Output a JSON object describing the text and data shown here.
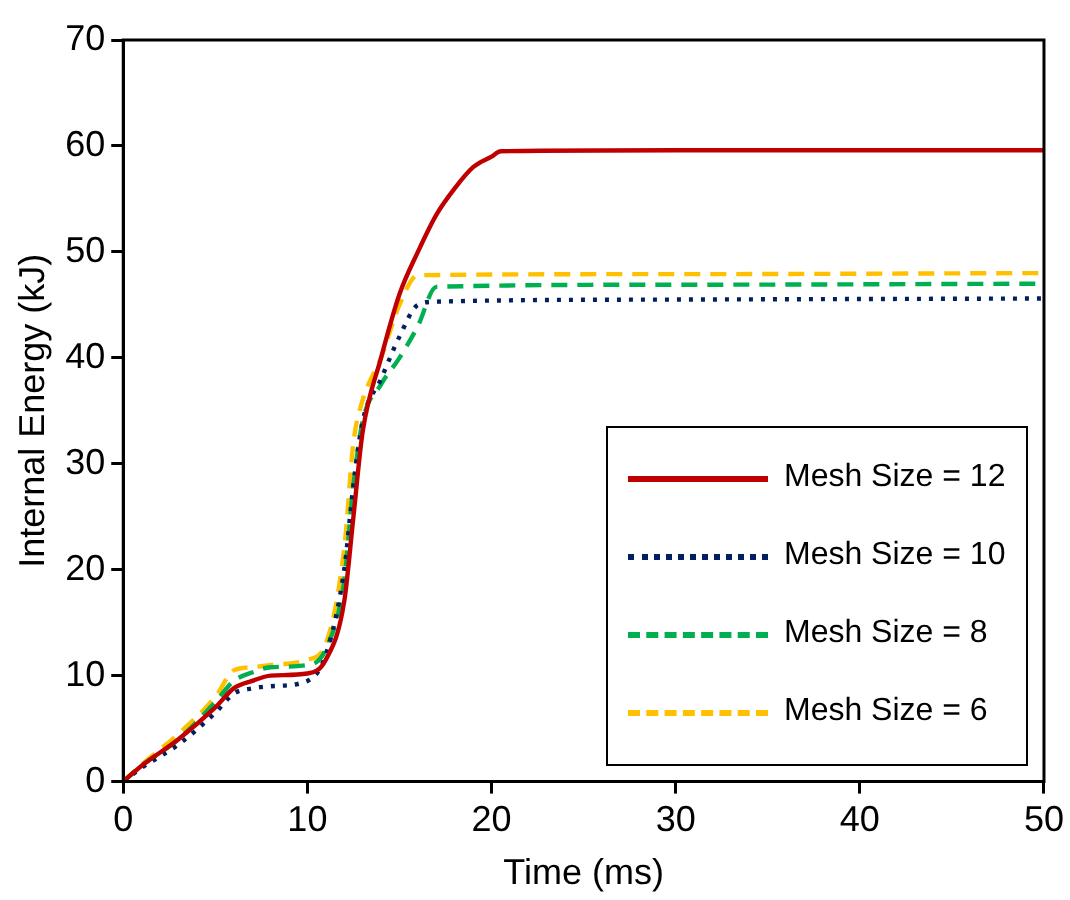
{
  "chart_data": {
    "type": "line",
    "xlabel": "Time (ms)",
    "ylabel": "Internal Energy (kJ)",
    "xlim": [
      0,
      50
    ],
    "xticks": [
      0,
      10,
      20,
      30,
      40,
      50
    ],
    "ylim": [
      0,
      70
    ],
    "yticks": [
      0,
      10,
      20,
      30,
      40,
      50,
      60,
      70
    ],
    "grid": false,
    "legend": "bottom right",
    "marker": "none",
    "series": [
      {
        "name": "Mesh Size = 12",
        "color": "#c00000",
        "line_style": "solid",
        "x": [
          0,
          1,
          3,
          5,
          6,
          7,
          8,
          10,
          11,
          12,
          12.5,
          13,
          14,
          15,
          16,
          17,
          18,
          19,
          20,
          20.5,
          30,
          50
        ],
        "values": [
          0,
          1.5,
          4,
          7,
          8.8,
          9.5,
          10,
          10.2,
          11.5,
          17,
          25,
          33,
          40,
          46,
          50,
          53.5,
          56,
          58,
          59,
          59.5,
          59.6,
          59.6
        ]
      },
      {
        "name": "Mesh Size = 10",
        "color": "#002060",
        "line_style": "dotted",
        "x": [
          0,
          1,
          3,
          5,
          6,
          7,
          8,
          10,
          11,
          12,
          12.5,
          13,
          14,
          15,
          16,
          17,
          30,
          50
        ],
        "values": [
          0,
          1.3,
          3.5,
          6.5,
          8.3,
          8.8,
          9,
          9.5,
          12,
          20,
          28,
          34,
          38,
          42,
          45,
          45.3,
          45.5,
          45.6
        ]
      },
      {
        "name": "Mesh Size = 8",
        "color": "#00b050",
        "line_style": "dashed",
        "x": [
          0,
          1,
          3,
          5,
          6,
          7,
          8,
          10,
          11,
          12,
          12.5,
          13,
          14,
          15,
          16,
          17,
          30,
          50
        ],
        "values": [
          0,
          1.5,
          4,
          7.5,
          9.5,
          10.3,
          10.8,
          11,
          12.5,
          19,
          28,
          34,
          37.5,
          40,
          43,
          46.7,
          46.9,
          47
        ]
      },
      {
        "name": "Mesh Size = 6",
        "color": "#ffc000",
        "line_style": "dashed",
        "x": [
          0,
          1,
          3,
          5,
          6,
          7,
          8,
          10,
          11,
          12,
          12.5,
          13,
          14,
          15,
          16,
          30,
          50
        ],
        "values": [
          0,
          1.6,
          4.5,
          8,
          10.5,
          10.8,
          11,
          11.5,
          13,
          22,
          32,
          36,
          40,
          45,
          47.8,
          47.9,
          48
        ]
      }
    ]
  }
}
